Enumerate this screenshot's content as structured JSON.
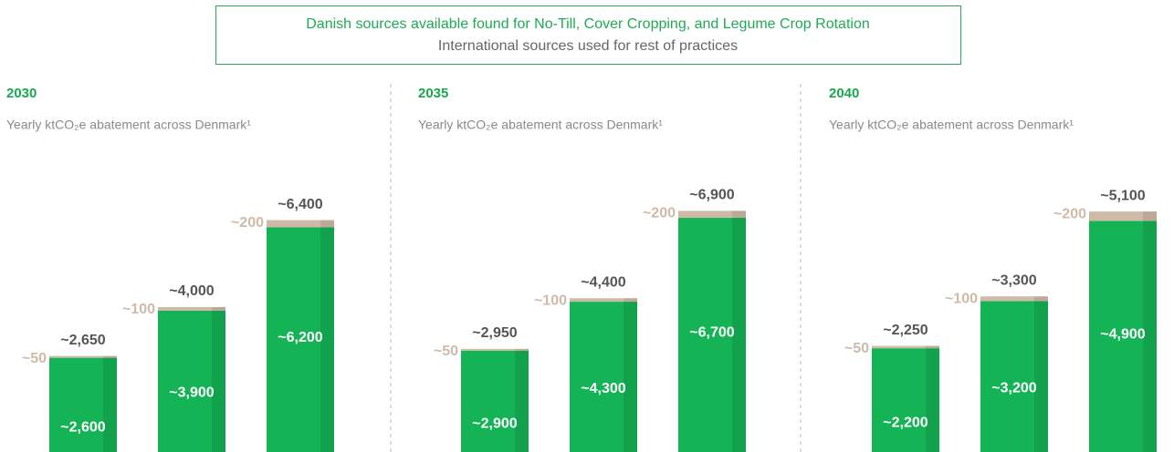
{
  "header": {
    "line1": "Danish sources available found for No-Till, Cover Cropping, and Legume Crop Rotation",
    "line2": "International sources used for rest of practices"
  },
  "chart_data": [
    {
      "type": "bar",
      "stacked": true,
      "title": "2030",
      "subtitle": "Yearly ktCO₂e abatement across Denmark¹",
      "categories": [
        null,
        null,
        null
      ],
      "ylim": [
        0,
        8200
      ],
      "series": [
        {
          "color": "#14b355",
          "values": [
            2600,
            3900,
            6200
          ],
          "value_labels": [
            "~2,600",
            "~3,900",
            "~6,200"
          ]
        },
        {
          "color": "#cfbaa8",
          "values": [
            50,
            100,
            200
          ],
          "value_labels": [
            "~50",
            "~100",
            "~200"
          ]
        }
      ],
      "total_labels": [
        "~2,650",
        "~4,000",
        "~6,400"
      ]
    },
    {
      "type": "bar",
      "stacked": true,
      "title": "2035",
      "subtitle": "Yearly ktCO₂e abatement across Denmark¹",
      "categories": [
        null,
        null,
        null
      ],
      "ylim": [
        0,
        8500
      ],
      "series": [
        {
          "color": "#14b355",
          "values": [
            2900,
            4300,
            6700
          ],
          "value_labels": [
            "~2,900",
            "~4,300",
            "~6,700"
          ]
        },
        {
          "color": "#cfbaa8",
          "values": [
            50,
            100,
            200
          ],
          "value_labels": [
            "~50",
            "~100",
            "~200"
          ]
        }
      ],
      "total_labels": [
        "~2,950",
        "~4,400",
        "~6,900"
      ]
    },
    {
      "type": "bar",
      "stacked": true,
      "title": "2040",
      "subtitle": "Yearly ktCO₂e abatement across Denmark¹",
      "categories": [
        null,
        null,
        null
      ],
      "ylim": [
        0,
        6300
      ],
      "series": [
        {
          "color": "#14b355",
          "values": [
            2200,
            3200,
            4900
          ],
          "value_labels": [
            "~2,200",
            "~3,200",
            "~4,900"
          ]
        },
        {
          "color": "#cfbaa8",
          "values": [
            50,
            100,
            200
          ],
          "value_labels": [
            "~50",
            "~100",
            "~200"
          ]
        }
      ],
      "total_labels": [
        "~2,250",
        "~3,300",
        "~5,100"
      ]
    }
  ]
}
